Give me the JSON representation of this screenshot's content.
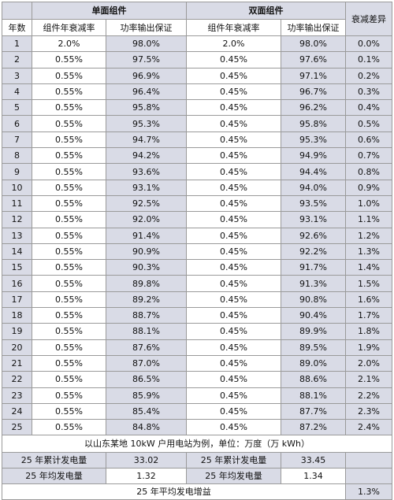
{
  "header": {
    "mono_group": "单面组件",
    "bifacial_group": "双面组件",
    "diff": "衰减差异",
    "year": "年数",
    "mono_decay": "组件年衰减率",
    "mono_power": "功率输出保证",
    "bi_decay": "组件年衰减率",
    "bi_power": "功率输出保证"
  },
  "rows": [
    [
      "1",
      "2.0%",
      "98.0%",
      "2.0%",
      "98.0%",
      "0.0%"
    ],
    [
      "2",
      "0.55%",
      "97.5%",
      "0.45%",
      "97.6%",
      "0.1%"
    ],
    [
      "3",
      "0.55%",
      "96.9%",
      "0.45%",
      "97.1%",
      "0.2%"
    ],
    [
      "4",
      "0.55%",
      "96.4%",
      "0.45%",
      "96.7%",
      "0.3%"
    ],
    [
      "5",
      "0.55%",
      "95.8%",
      "0.45%",
      "96.2%",
      "0.4%"
    ],
    [
      "6",
      "0.55%",
      "95.3%",
      "0.45%",
      "95.8%",
      "0.5%"
    ],
    [
      "7",
      "0.55%",
      "94.7%",
      "0.45%",
      "95.3%",
      "0.6%"
    ],
    [
      "8",
      "0.55%",
      "94.2%",
      "0.45%",
      "94.9%",
      "0.7%"
    ],
    [
      "9",
      "0.55%",
      "93.6%",
      "0.45%",
      "94.4%",
      "0.8%"
    ],
    [
      "10",
      "0.55%",
      "93.1%",
      "0.45%",
      "94.0%",
      "0.9%"
    ],
    [
      "11",
      "0.55%",
      "92.5%",
      "0.45%",
      "93.5%",
      "1.0%"
    ],
    [
      "12",
      "0.55%",
      "92.0%",
      "0.45%",
      "93.1%",
      "1.1%"
    ],
    [
      "13",
      "0.55%",
      "91.4%",
      "0.45%",
      "92.6%",
      "1.2%"
    ],
    [
      "14",
      "0.55%",
      "90.9%",
      "0.45%",
      "92.2%",
      "1.3%"
    ],
    [
      "15",
      "0.55%",
      "90.3%",
      "0.45%",
      "91.7%",
      "1.4%"
    ],
    [
      "16",
      "0.55%",
      "89.8%",
      "0.45%",
      "91.3%",
      "1.5%"
    ],
    [
      "17",
      "0.55%",
      "89.2%",
      "0.45%",
      "90.8%",
      "1.6%"
    ],
    [
      "18",
      "0.55%",
      "88.7%",
      "0.45%",
      "90.4%",
      "1.7%"
    ],
    [
      "19",
      "0.55%",
      "88.1%",
      "0.45%",
      "89.9%",
      "1.8%"
    ],
    [
      "20",
      "0.55%",
      "87.6%",
      "0.45%",
      "89.5%",
      "1.9%"
    ],
    [
      "21",
      "0.55%",
      "87.0%",
      "0.45%",
      "89.0%",
      "2.0%"
    ],
    [
      "22",
      "0.55%",
      "86.5%",
      "0.45%",
      "88.6%",
      "2.1%"
    ],
    [
      "23",
      "0.55%",
      "85.9%",
      "0.45%",
      "88.1%",
      "2.2%"
    ],
    [
      "24",
      "0.55%",
      "85.4%",
      "0.45%",
      "87.7%",
      "2.3%"
    ],
    [
      "25",
      "0.55%",
      "84.8%",
      "0.45%",
      "87.2%",
      "2.4%"
    ]
  ],
  "note": "以山东某地 10kW 户用电站为例，单位：万度（万 kWh）",
  "summary": {
    "total_label_mono": "25 年累计发电量",
    "total_mono": "33.02",
    "total_label_bi": "25 年累计发电量",
    "total_bi": "33.45",
    "avg_label_mono": "25 年均发电量",
    "avg_mono": "1.32",
    "avg_label_bi": "25 年均发电量",
    "avg_bi": "1.34",
    "gain_label": "25 年平均发电增益",
    "gain": "1.3%"
  }
}
